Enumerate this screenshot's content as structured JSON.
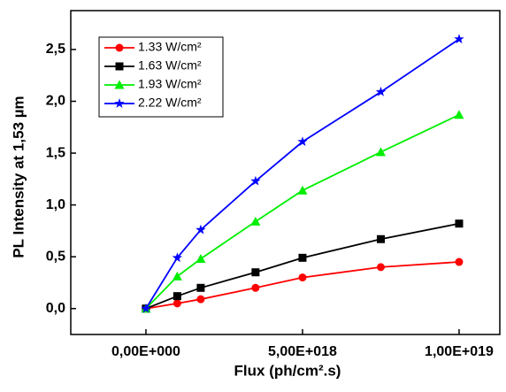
{
  "chart_data": {
    "type": "line",
    "x_label": "Flux (ph/cm².s)",
    "y_label": "PL Intensity at 1,53 µm",
    "xlim": [
      -2.4e+18,
      1.13e+19
    ],
    "ylim": [
      -0.25,
      2.875
    ],
    "xticks": [
      {
        "value": 0,
        "label": "0,00E+000"
      },
      {
        "value": 5e+18,
        "label": "5,00E+018"
      },
      {
        "value": 1e+19,
        "label": "1,00E+019"
      }
    ],
    "yticks": [
      {
        "value": 0,
        "label": "0,0"
      },
      {
        "value": 0.5,
        "label": "0,5"
      },
      {
        "value": 1,
        "label": "1,0"
      },
      {
        "value": 1.5,
        "label": "1,5"
      },
      {
        "value": 2,
        "label": "2,0"
      },
      {
        "value": 2.5,
        "label": "2,5"
      }
    ],
    "legend": "upper left",
    "series": [
      {
        "name": "1.33 W/cm²",
        "color": "#ff0000",
        "marker": "circle",
        "x": [
          0,
          1e+18,
          1.75e+18,
          3.5e+18,
          5e+18,
          7.5e+18,
          1e+19
        ],
        "values": [
          0,
          0.05,
          0.09,
          0.2,
          0.3,
          0.4,
          0.45
        ]
      },
      {
        "name": "1.63 W/cm²",
        "color": "#000000",
        "marker": "square",
        "x": [
          0,
          1e+18,
          1.75e+18,
          3.5e+18,
          5e+18,
          7.5e+18,
          1e+19
        ],
        "values": [
          0,
          0.12,
          0.2,
          0.35,
          0.49,
          0.67,
          0.82
        ]
      },
      {
        "name": "1.93 W/cm²",
        "color": "#00ee00",
        "marker": "triangle",
        "x": [
          0,
          1e+18,
          1.75e+18,
          3.5e+18,
          5e+18,
          7.5e+18,
          1e+19
        ],
        "values": [
          0,
          0.31,
          0.48,
          0.84,
          1.14,
          1.51,
          1.87
        ]
      },
      {
        "name": "2.22 W/cm²",
        "color": "#0000ff",
        "marker": "star",
        "x": [
          0,
          1e+18,
          1.75e+18,
          3.5e+18,
          5e+18,
          7.5e+18,
          1e+19
        ],
        "values": [
          0,
          0.49,
          0.76,
          1.23,
          1.61,
          2.09,
          2.6
        ]
      }
    ]
  }
}
